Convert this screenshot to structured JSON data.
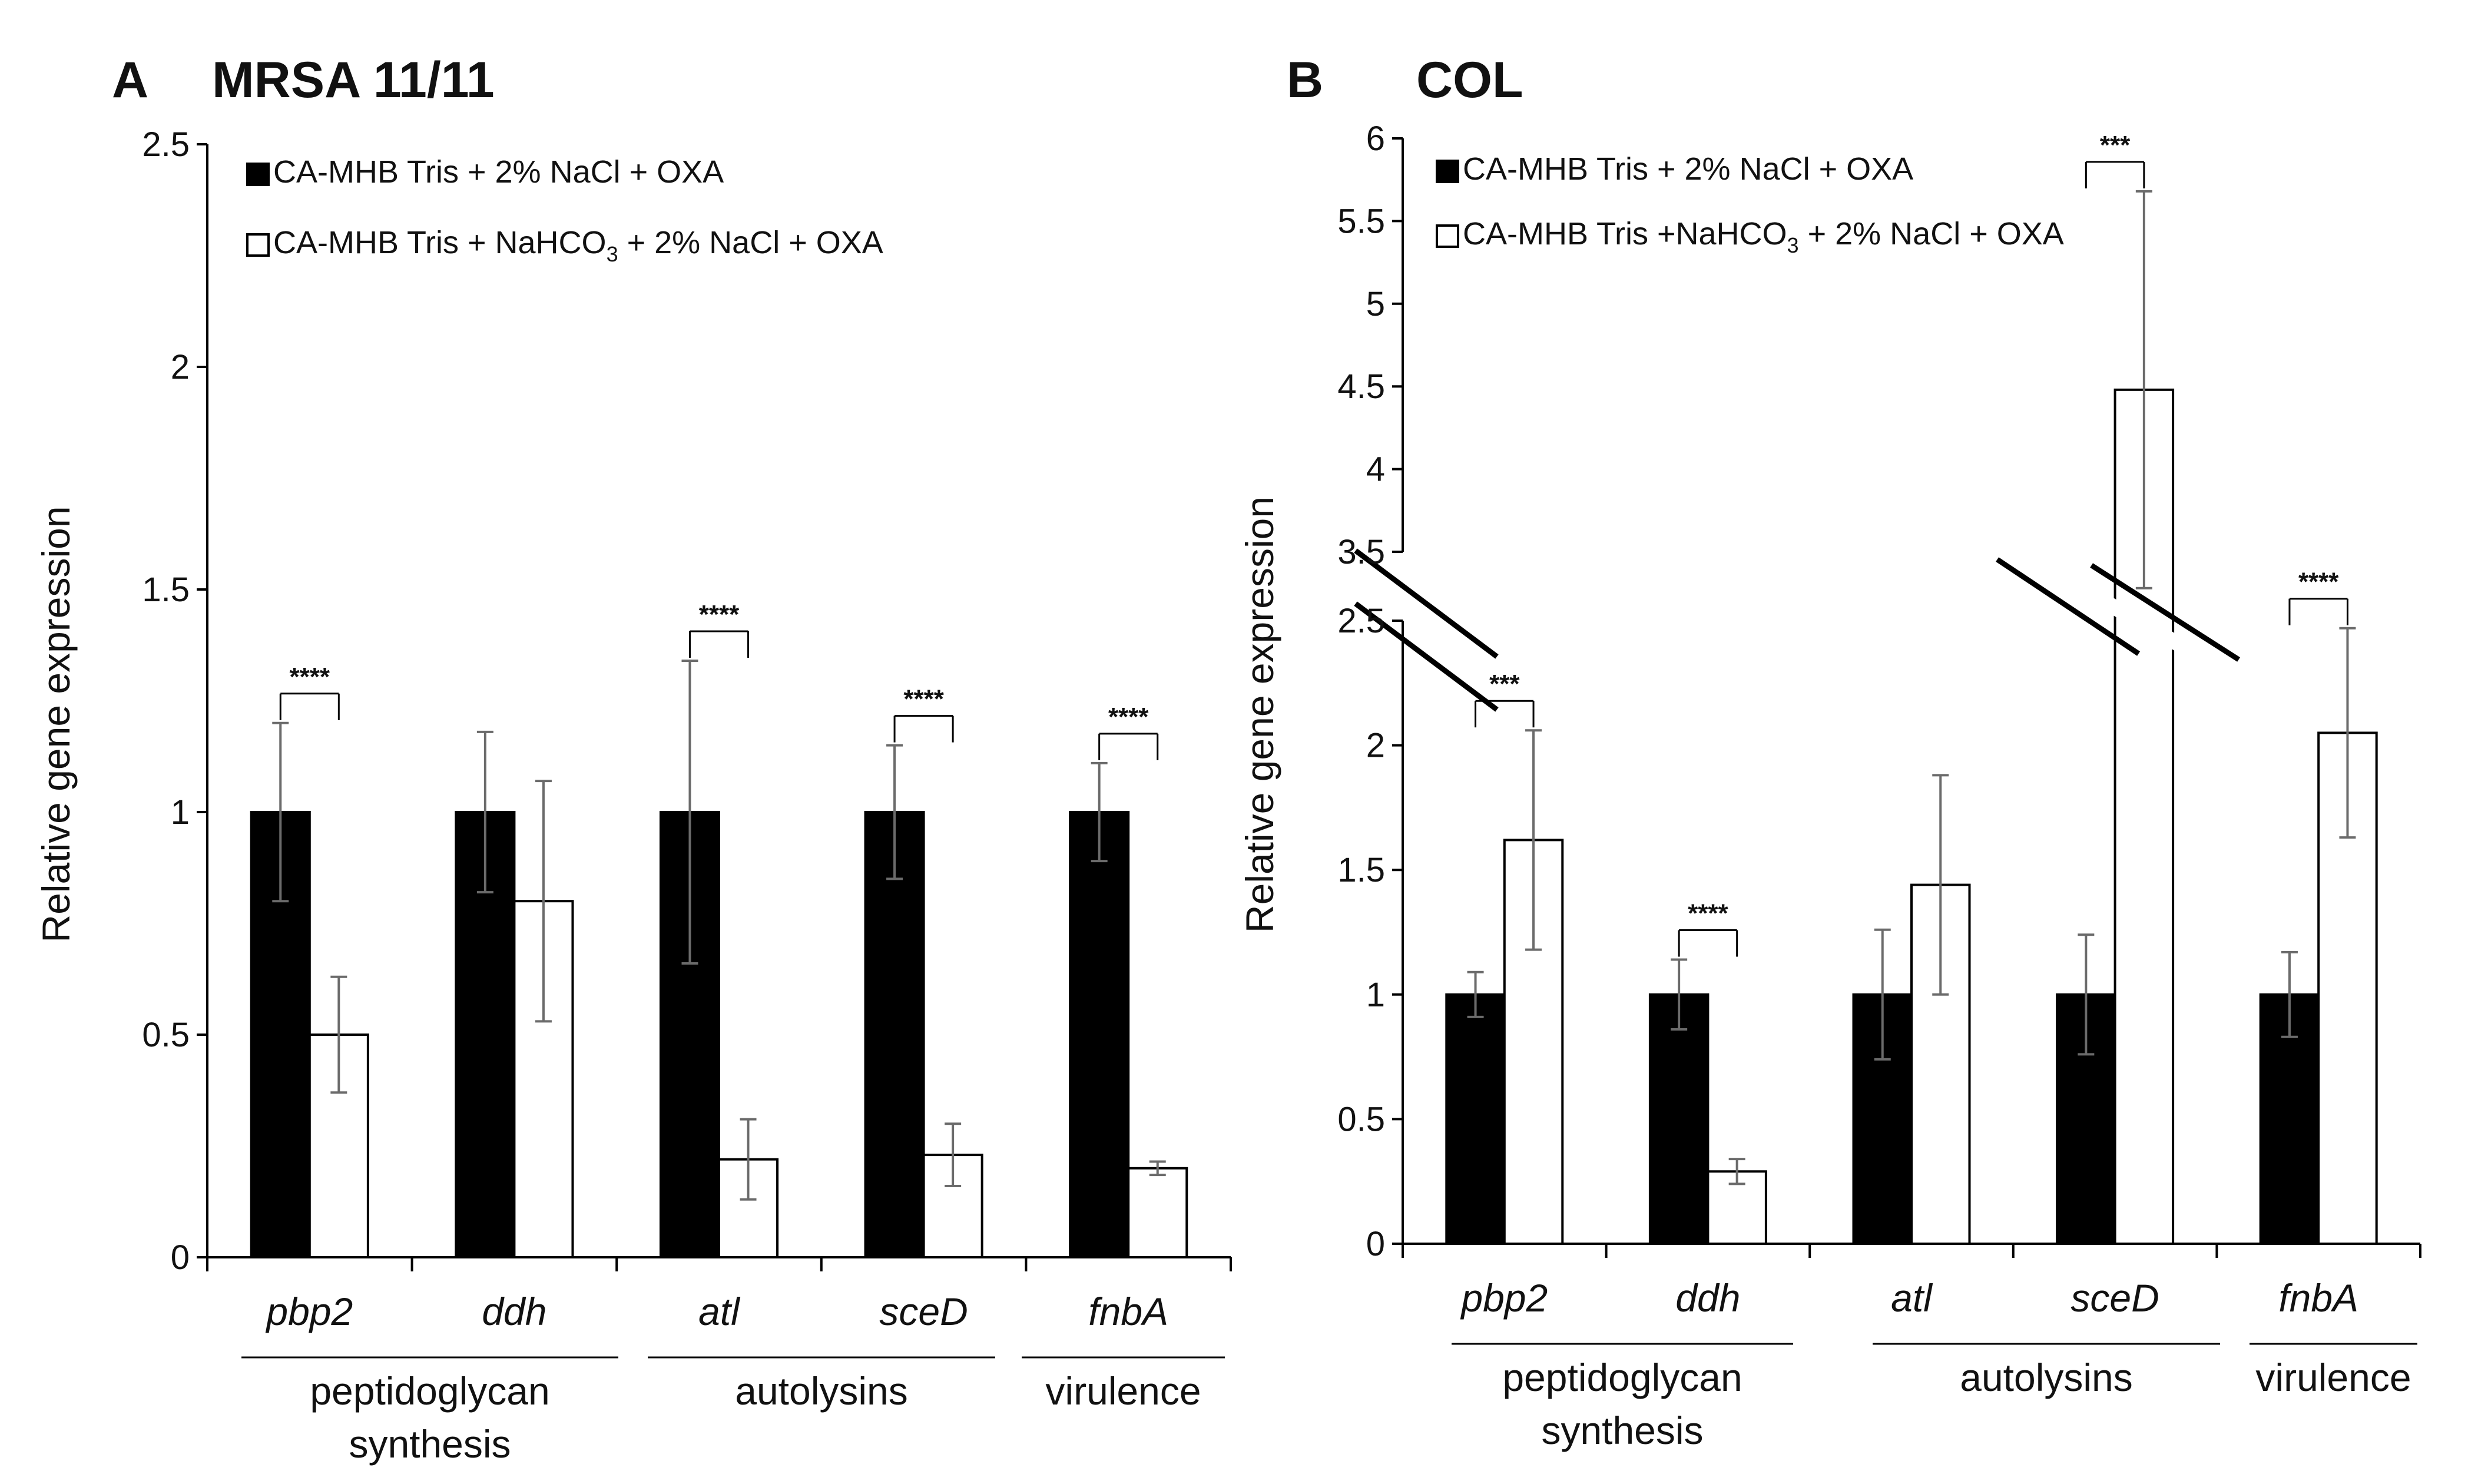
{
  "chart_data": [
    {
      "type": "bar",
      "panel": "A",
      "title": "MRSA 11/11",
      "ylabel": "Relative gene expression",
      "ylim": [
        0,
        2.5
      ],
      "yticks": [
        "0",
        "0.5",
        "1",
        "1.5",
        "2",
        "2.5"
      ],
      "categories": [
        "pbp2",
        "ddh",
        "atl",
        "sceD",
        "fnbA"
      ],
      "groups": [
        {
          "label": "peptidoglycan synthesis",
          "lines": [
            "peptidoglycan",
            "synthesis"
          ],
          "categories": [
            "pbp2",
            "ddh"
          ]
        },
        {
          "label": "autolysins",
          "lines": [
            "autolysins"
          ],
          "categories": [
            "atl",
            "sceD"
          ]
        },
        {
          "label": "virulence",
          "lines": [
            "virulence"
          ],
          "categories": [
            "fnbA"
          ]
        }
      ],
      "legend": [
        {
          "fill": "#000000",
          "label": "CA-MHB Tris + 2% NaCl + OXA"
        },
        {
          "fill": "#ffffff",
          "label_parts": [
            "CA-MHB Tris + NaHCO",
            "3",
            "+ 2% NaCl + OXA"
          ]
        }
      ],
      "series": [
        {
          "name": "CA-MHB Tris + 2% NaCl + OXA",
          "color": "#000000",
          "values": [
            1,
            1,
            1,
            1,
            1
          ],
          "errors": [
            0.2,
            0.18,
            0.34,
            0.15,
            0.11
          ]
        },
        {
          "name": "CA-MHB Tris + NaHCO3 + 2% NaCl + OXA",
          "color": "#ffffff",
          "values": [
            0.5,
            0.8,
            0.22,
            0.23,
            0.2
          ],
          "errors": [
            0.13,
            0.27,
            0.09,
            0.07,
            0.015
          ]
        }
      ],
      "significance": [
        "****",
        "",
        "****",
        "****",
        "****"
      ]
    },
    {
      "type": "bar",
      "panel": "B",
      "title": "COL",
      "ylabel": "Relative gene expression",
      "ylim": [
        0,
        6
      ],
      "axis_break": [
        2.5,
        3.5
      ],
      "yticks_lower": [
        "0",
        "0.5",
        "1",
        "1.5",
        "2",
        "2.5"
      ],
      "yticks_upper": [
        "3.5",
        "4",
        "4.5",
        "5",
        "5.5",
        "6"
      ],
      "categories": [
        "pbp2",
        "ddh",
        "atl",
        "sceD",
        "fnbA"
      ],
      "groups": [
        {
          "label": "peptidoglycan synthesis",
          "lines": [
            "peptidoglycan",
            "synthesis"
          ],
          "categories": [
            "pbp2",
            "ddh"
          ]
        },
        {
          "label": "autolysins",
          "lines": [
            "autolysins"
          ],
          "categories": [
            "atl",
            "sceD"
          ]
        },
        {
          "label": "virulence",
          "lines": [
            "virulence"
          ],
          "categories": [
            "fnbA"
          ]
        }
      ],
      "legend": [
        {
          "fill": "#000000",
          "label": "CA-MHB Tris + 2% NaCl + OXA"
        },
        {
          "fill": "#ffffff",
          "label_parts": [
            "CA-MHB Tris +NaHCO",
            "3",
            "+ 2% NaCl + OXA"
          ]
        }
      ],
      "series": [
        {
          "name": "CA-MHB Tris + 2% NaCl + OXA",
          "color": "#000000",
          "values": [
            1,
            1,
            1,
            1,
            1
          ],
          "errors": [
            0.09,
            0.14,
            0.26,
            0.24,
            0.17
          ]
        },
        {
          "name": "CA-MHB Tris + NaHCO3 + 2% NaCl + OXA",
          "color": "#ffffff",
          "values": [
            1.62,
            0.29,
            1.44,
            4.48,
            2.05
          ],
          "errors": [
            0.44,
            0.05,
            0.44,
            1.2,
            0.42
          ]
        }
      ],
      "significance": [
        "***",
        "****",
        "",
        "***",
        "****"
      ]
    }
  ]
}
